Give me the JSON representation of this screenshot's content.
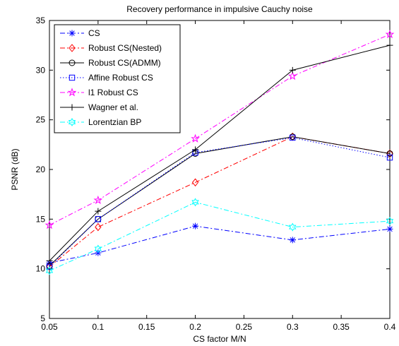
{
  "chart_data": {
    "type": "line",
    "title": "Recovery performance in impulsive Cauchy noise",
    "xlabel": "CS factor M/N",
    "ylabel": "PSNR (dB)",
    "xlim": [
      0.05,
      0.4
    ],
    "ylim": [
      5,
      35
    ],
    "xticks": [
      0.05,
      0.1,
      0.15,
      0.2,
      0.25,
      0.3,
      0.35,
      0.4
    ],
    "xtick_labels": [
      "0.05",
      "0.1",
      "0.15",
      "0.2",
      "0.25",
      "0.3",
      "0.35",
      "0.4"
    ],
    "yticks": [
      5,
      10,
      15,
      20,
      25,
      30,
      35
    ],
    "ytick_labels": [
      "5",
      "10",
      "15",
      "20",
      "25",
      "30",
      "35"
    ],
    "x": [
      0.05,
      0.1,
      0.2,
      0.3,
      0.4
    ],
    "grid": false,
    "legend_position": "top-left",
    "series": [
      {
        "name": "CS",
        "values": [
          10.6,
          11.6,
          14.3,
          12.9,
          14.0
        ],
        "color": "#0000ff",
        "dash": "dashdot",
        "marker": "asterisk"
      },
      {
        "name": "Robust CS(Nested)",
        "values": [
          10.2,
          14.2,
          18.7,
          23.3,
          21.6
        ],
        "color": "#ff0000",
        "dash": "dashdot",
        "marker": "diamond"
      },
      {
        "name": "Robust CS(ADMM)",
        "values": [
          10.3,
          15.0,
          21.6,
          23.3,
          21.6
        ],
        "color": "#000000",
        "dash": "solid",
        "marker": "circle"
      },
      {
        "name": "Affine Robust CS",
        "values": [
          10.2,
          15.0,
          21.7,
          23.2,
          21.2
        ],
        "color": "#0000ff",
        "dash": "dotted",
        "marker": "square"
      },
      {
        "name": "l1 Robust CS",
        "values": [
          14.4,
          16.9,
          23.1,
          29.4,
          33.6
        ],
        "color": "#ff00ff",
        "dash": "dashdot",
        "marker": "star"
      },
      {
        "name": "Wagner et al.",
        "values": [
          10.8,
          15.8,
          22.0,
          30.0,
          32.5
        ],
        "color": "#000000",
        "dash": "solid",
        "marker": "plus"
      },
      {
        "name": "Lorentzian BP",
        "values": [
          9.8,
          12.0,
          16.7,
          14.2,
          14.8
        ],
        "color": "#00ffff",
        "dash": "dashdot",
        "marker": "hexagram"
      }
    ]
  }
}
